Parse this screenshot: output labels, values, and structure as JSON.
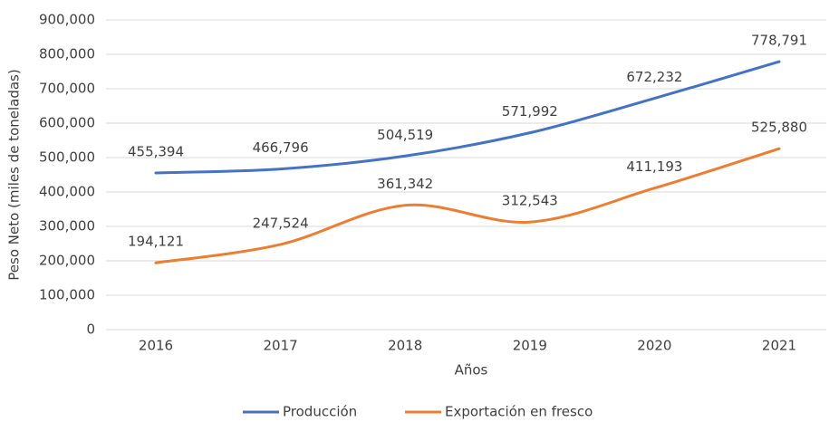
{
  "chart_data": {
    "type": "line",
    "x_label": "Años",
    "y_label": "Peso Neto (miles de toneladas)",
    "categories": [
      "2016",
      "2017",
      "2018",
      "2019",
      "2020",
      "2021"
    ],
    "series": [
      {
        "name": "Producción",
        "color": "#4472c4",
        "values": [
          455394,
          466796,
          504519,
          571992,
          672232,
          778791
        ],
        "value_labels": [
          "455,394",
          "466,796",
          "504,519",
          "571,992",
          "672,232",
          "778,791"
        ]
      },
      {
        "name": "Exportación en fresco",
        "color": "#ed7d31",
        "values": [
          194121,
          247524,
          361342,
          312543,
          411193,
          525880
        ],
        "value_labels": [
          "194,121",
          "247,524",
          "361,342",
          "312,543",
          "411,193",
          "525,880"
        ]
      }
    ],
    "ylim": [
      0,
      900000
    ],
    "yticks": [
      0,
      {
        "value": 100000,
        "label": "100,000"
      },
      {
        "value": 200000,
        "label": "200,000"
      },
      {
        "value": 300000,
        "label": "300,000"
      },
      {
        "value": 400000,
        "label": "400,000"
      },
      {
        "value": 500000,
        "label": "500,000"
      },
      {
        "value": 600000,
        "label": "600,000"
      },
      {
        "value": 700000,
        "label": "700,000"
      },
      {
        "value": 800000,
        "label": "800,000"
      },
      {
        "value": 900000,
        "label": "900,000"
      }
    ],
    "grid": true,
    "smooth": true,
    "legend": "bottom"
  }
}
